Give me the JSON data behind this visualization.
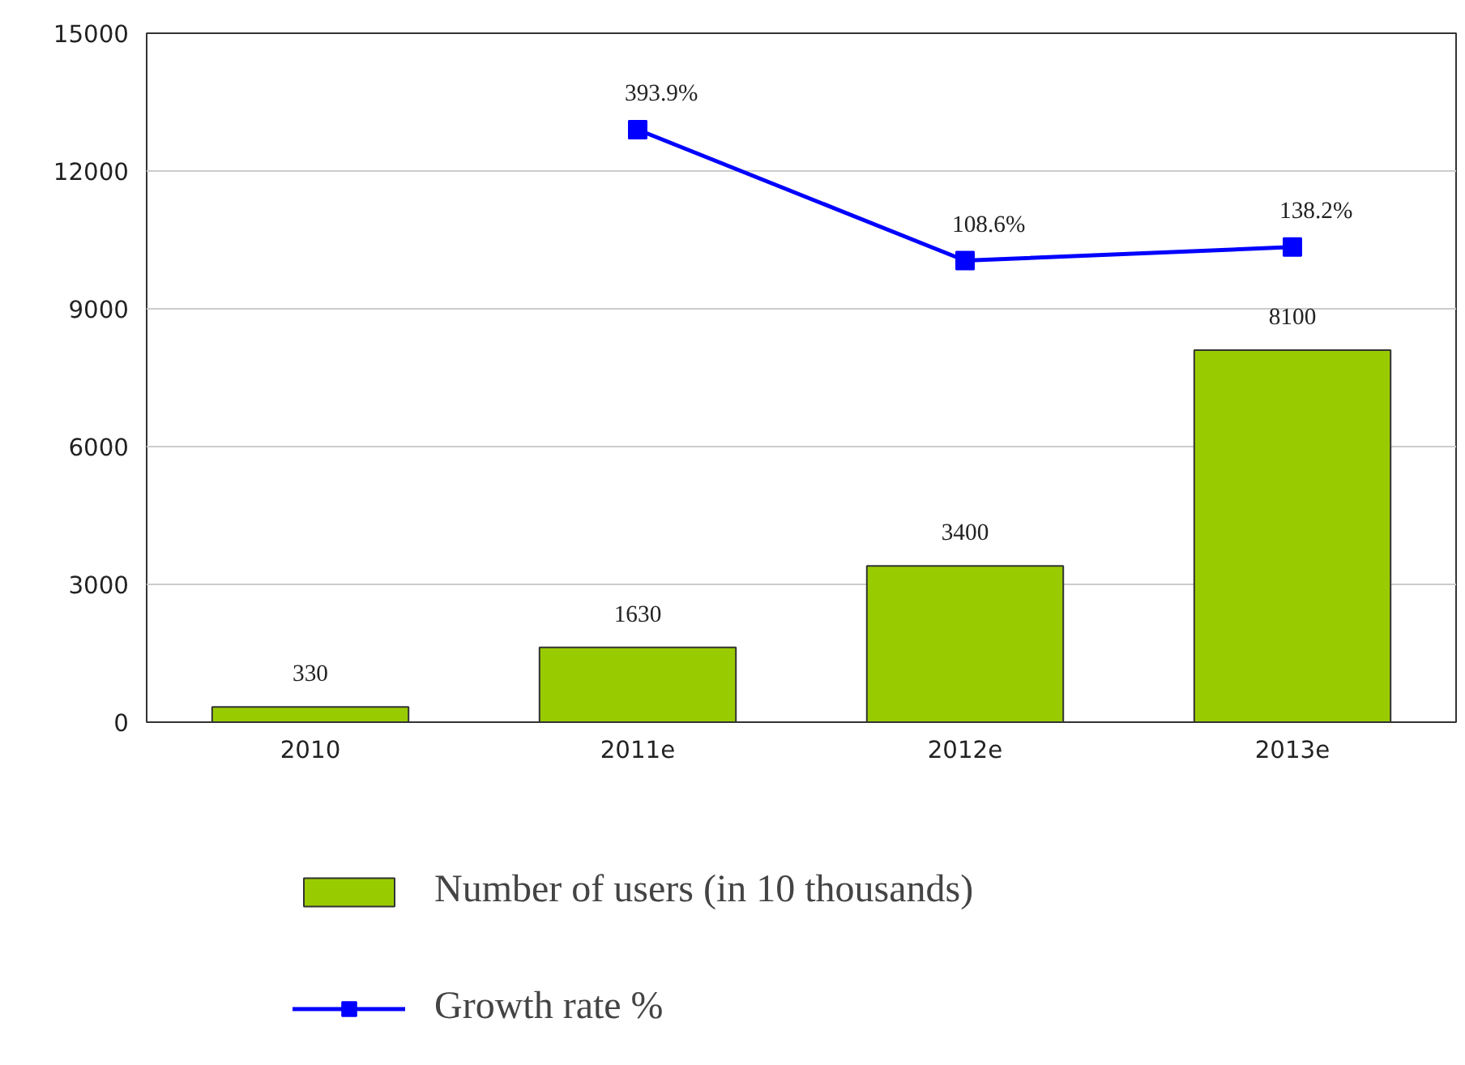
{
  "chart_data": {
    "type": "bar",
    "categories": [
      "2010",
      "2011e",
      "2012e",
      "2013e"
    ],
    "series": [
      {
        "name": "Number of users (in 10 thousands)",
        "color": "#99cc00",
        "values": [
          330,
          1630,
          3400,
          8100
        ]
      },
      {
        "name": "Growth rate %",
        "type": "line",
        "axis": "y2",
        "color": "#0000ff",
        "values": [
          null,
          393.9,
          108.6,
          138.2
        ],
        "value_labels": [
          null,
          "393.9%",
          "108.6%",
          "138.2%"
        ],
        "marker": "square"
      }
    ],
    "ylim": [
      0,
      15000
    ],
    "yticks": [
      0,
      3000,
      6000,
      9000,
      12000,
      15000
    ],
    "y2lim": [
      -897,
      604
    ],
    "data_labels": true,
    "grid": "y",
    "legend": "bottom"
  }
}
